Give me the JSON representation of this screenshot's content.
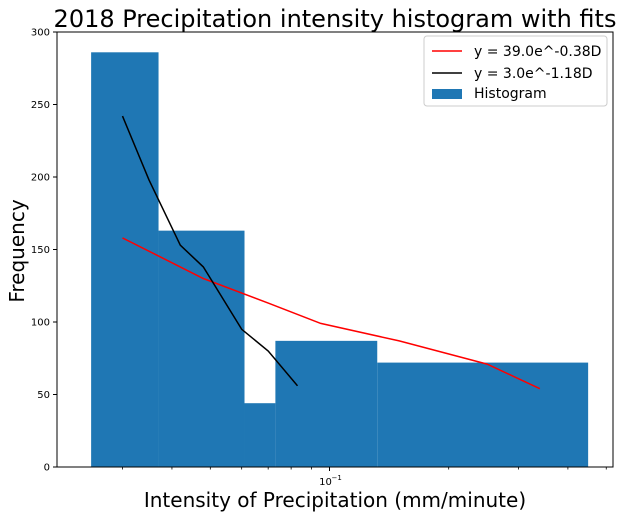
{
  "chart_data": {
    "type": "bar",
    "title": "2018 Precipitation intensity histogram with fits",
    "xlabel": "Intensity of Precipitation (mm/minute)",
    "ylabel": "Frequency",
    "xscale": "log",
    "xlim": [
      0.0205,
      0.52
    ],
    "ylim": [
      0,
      300
    ],
    "yticks": [
      0,
      50,
      100,
      150,
      200,
      250,
      300
    ],
    "xticks": [
      {
        "value": 0.1,
        "base": "10",
        "exponent": "−1"
      }
    ],
    "grid": false,
    "legend_position": "top-right",
    "histogram": {
      "name": "Histogram",
      "color": "#1f77b4",
      "bins": [
        {
          "x0": 0.025,
          "x1": 0.037,
          "count": 286
        },
        {
          "x0": 0.037,
          "x1": 0.061,
          "count": 163
        },
        {
          "x0": 0.061,
          "x1": 0.073,
          "count": 44
        },
        {
          "x0": 0.073,
          "x1": 0.132,
          "count": 87
        },
        {
          "x0": 0.132,
          "x1": 0.45,
          "count": 72
        }
      ]
    },
    "series": [
      {
        "name": "y = 39.0e^-0.38D",
        "color": "#ff0000",
        "x": [
          0.03,
          0.048,
          0.07,
          0.095,
          0.15,
          0.25,
          0.34
        ],
        "y": [
          158,
          130,
          113,
          99,
          87,
          71,
          54
        ]
      },
      {
        "name": "y = 3.0e^-1.18D",
        "color": "#000000",
        "x": [
          0.03,
          0.035,
          0.042,
          0.048,
          0.06,
          0.07,
          0.083
        ],
        "y": [
          242,
          198,
          153,
          138,
          95,
          80,
          56
        ]
      }
    ]
  }
}
